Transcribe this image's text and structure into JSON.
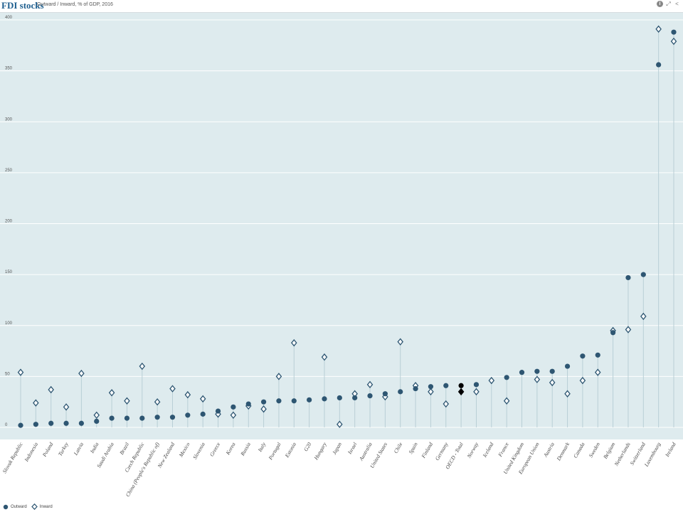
{
  "header": {
    "title": "FDI stocks",
    "subtitle": "Outward / Inward, % of GDP, 2016"
  },
  "toolbar": {
    "icons": [
      "info-icon",
      "expand-icon",
      "share-icon"
    ]
  },
  "colors": {
    "outward": "#2e5672",
    "inward": "#2e5672",
    "highlight": "#000000",
    "plot_bg": "#deebee",
    "stem": "#b9cfd6",
    "gridline": "#ffffff"
  },
  "legend": {
    "outward_label": "Outward",
    "inward_label": "Inward"
  },
  "chart_data": {
    "type": "scatter",
    "title": "FDI stocks",
    "subtitle": "Outward / Inward, % of GDP, 2016",
    "ylim": [
      0,
      400
    ],
    "yticks": [
      0,
      50,
      100,
      150,
      200,
      250,
      300,
      350,
      400
    ],
    "grid": true,
    "legend_position": "bottom-left",
    "highlight_category": "OECD - Total",
    "categories": [
      "Slovak Republic",
      "Indonesia",
      "Poland",
      "Turkey",
      "Latvia",
      "India",
      "Saudi Arabia",
      "Brazil",
      "Czech Republic",
      "China (People's Republic of)",
      "New Zealand",
      "Mexico",
      "Slovenia",
      "Greece",
      "Korea",
      "Russia",
      "Italy",
      "Portugal",
      "Estonia",
      "G20",
      "Hungary",
      "Japan",
      "Israel",
      "Australia",
      "United States",
      "Chile",
      "Spain",
      "Finland",
      "Germany",
      "OECD - Total",
      "Norway",
      "Iceland",
      "France",
      "United Kingdom",
      "European Union",
      "Austria",
      "Denmark",
      "Canada",
      "Sweden",
      "Belgium",
      "Netherlands",
      "Switzerland",
      "Luxembourg",
      "Ireland"
    ],
    "series": [
      {
        "name": "Outward",
        "marker": "circle",
        "values": [
          2,
          3,
          4,
          4,
          4,
          6,
          9,
          9,
          9,
          10,
          10,
          12,
          13,
          16,
          20,
          23,
          25,
          26,
          26,
          27,
          28,
          29,
          29,
          31,
          33,
          35,
          38,
          40,
          41,
          41,
          42,
          null,
          49,
          54,
          55,
          55,
          60,
          70,
          71,
          93,
          147,
          150,
          356,
          388
        ]
      },
      {
        "name": "Inward",
        "marker": "diamond",
        "values": [
          54,
          24,
          37,
          20,
          53,
          12,
          34,
          26,
          60,
          25,
          38,
          32,
          28,
          13,
          12,
          21,
          18,
          50,
          83,
          null,
          69,
          3,
          33,
          42,
          30,
          84,
          41,
          35,
          23,
          35,
          35,
          46,
          26,
          null,
          47,
          44,
          33,
          46,
          54,
          95,
          96,
          109,
          391,
          379
        ]
      }
    ]
  }
}
